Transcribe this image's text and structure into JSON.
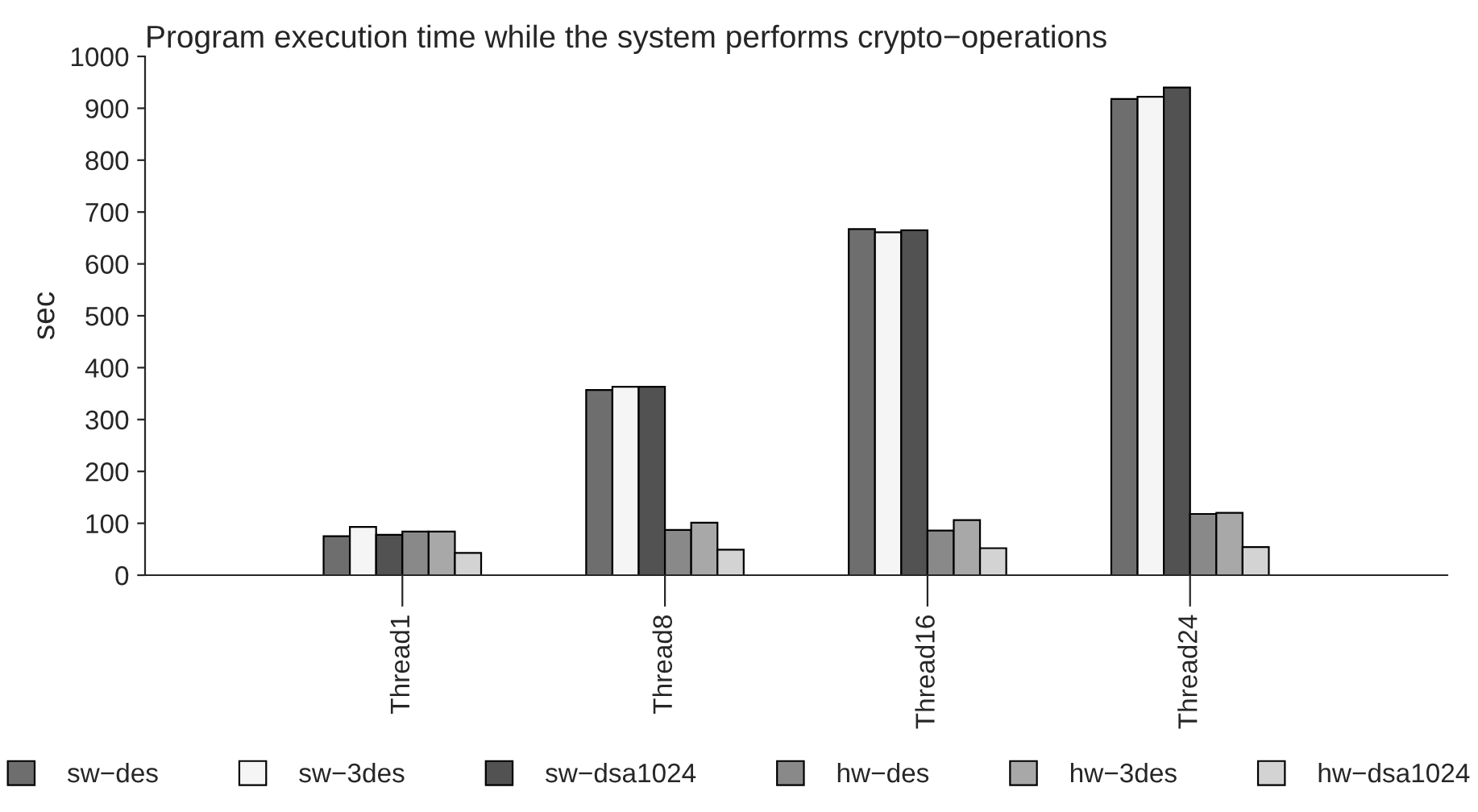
{
  "chart_data": {
    "type": "bar",
    "title": "Program execution time while the system performs crypto−operations",
    "ylabel": "sec",
    "categories": [
      "Thread1",
      "Thread8",
      "Thread16",
      "Thread24"
    ],
    "series": [
      {
        "name": "sw−des",
        "color": "#6e6e6e",
        "values": [
          75,
          357,
          667,
          918
        ]
      },
      {
        "name": "sw−3des",
        "color": "#f5f5f5",
        "values": [
          93,
          363,
          661,
          922
        ]
      },
      {
        "name": "sw−dsa1024",
        "color": "#525252",
        "values": [
          78,
          363,
          665,
          940
        ]
      },
      {
        "name": "hw−des",
        "color": "#898989",
        "values": [
          84,
          87,
          86,
          118
        ]
      },
      {
        "name": "hw−3des",
        "color": "#a8a8a8",
        "values": [
          84,
          101,
          106,
          120
        ]
      },
      {
        "name": "hw−dsa1024",
        "color": "#d3d3d3",
        "values": [
          43,
          49,
          52,
          54
        ]
      }
    ],
    "ylim": [
      0,
      1000
    ],
    "yticks": [
      0,
      100,
      200,
      300,
      400,
      500,
      600,
      700,
      800,
      900,
      1000
    ],
    "grid": false,
    "legend": "bottom"
  }
}
